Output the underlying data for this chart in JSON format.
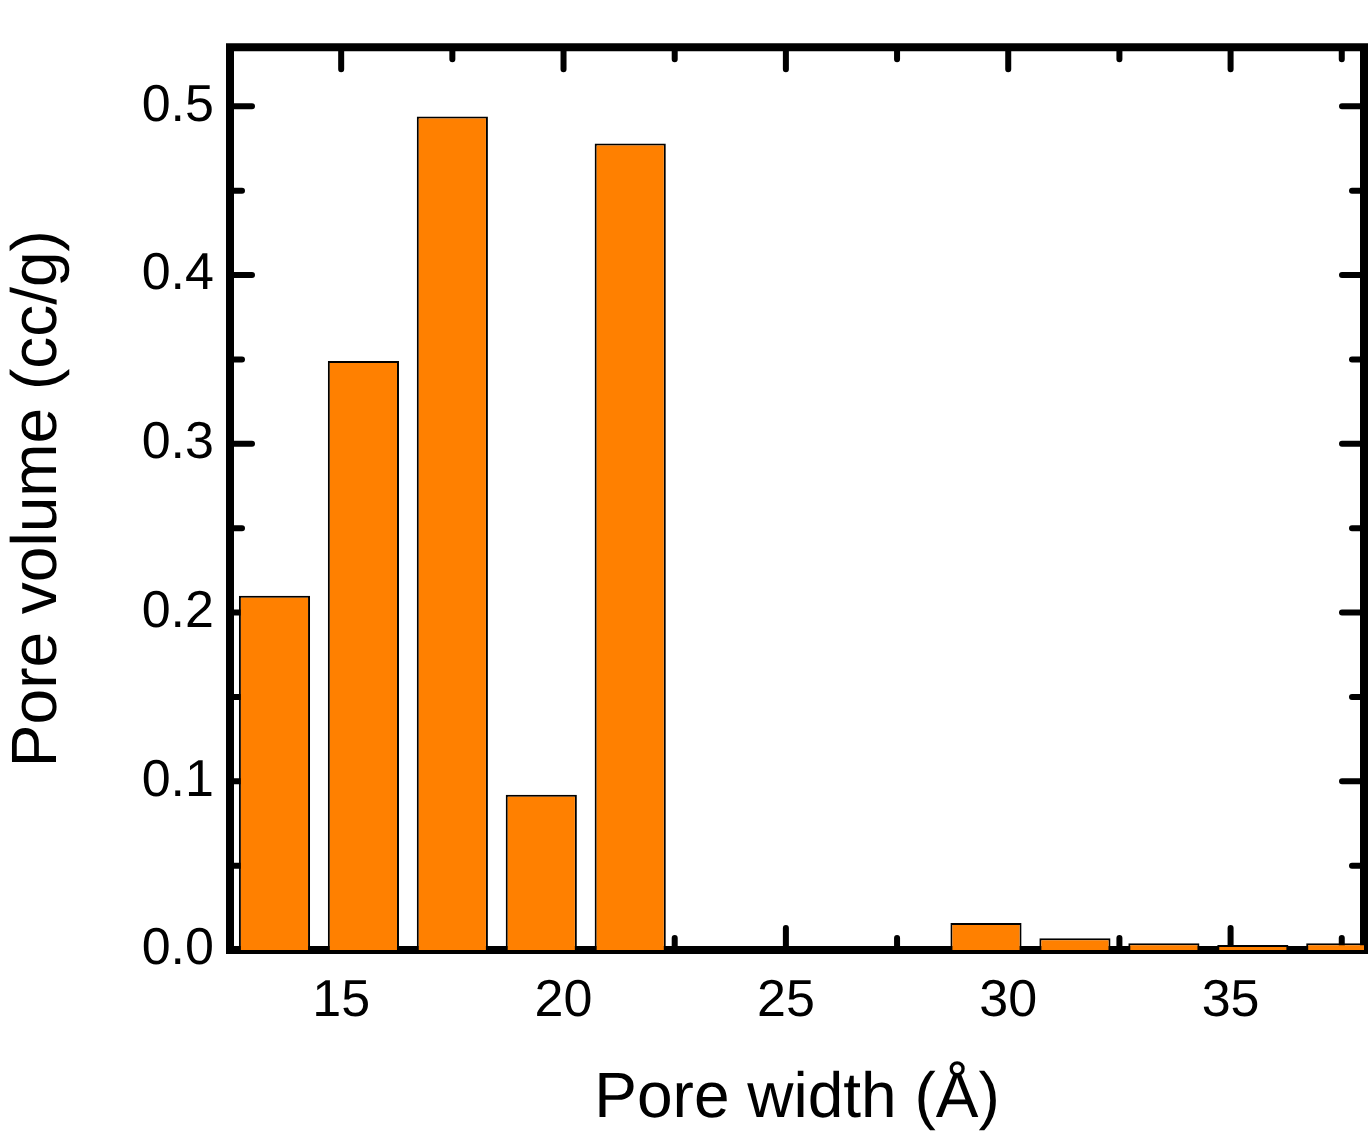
{
  "chart_data": {
    "type": "bar",
    "xlabel": "Pore width (Å)",
    "ylabel": "Pore volume (cc/g)",
    "x": [
      13.5,
      15.5,
      17.5,
      19.5,
      21.5,
      23.5,
      25.5,
      27.5,
      29.5,
      31.5,
      33.5,
      35.5,
      37.5
    ],
    "values": [
      0.21,
      0.349,
      0.494,
      0.092,
      0.478,
      0,
      0,
      0,
      0.016,
      0.007,
      0.004,
      0.003,
      0.004
    ],
    "color": "#ff8000",
    "xlim": [
      12.5,
      38
    ],
    "xticks": [
      15,
      {
        "value": 17.5,
        "label": null
      },
      20,
      {
        "value": 22.5,
        "label": null
      },
      25,
      {
        "value": 27.5,
        "label": null
      },
      30,
      {
        "value": 32.5,
        "label": null
      },
      35,
      {
        "value": 37.5,
        "label": null
      }
    ],
    "ylim": [
      0,
      0.535
    ],
    "yticks": [
      {
        "value": 0,
        "label": "0.0"
      },
      {
        "value": 0.05,
        "label": null
      },
      0.1,
      {
        "value": 0.15,
        "label": null
      },
      0.2,
      {
        "value": 0.25,
        "label": null
      },
      0.3,
      {
        "value": 0.35,
        "label": null
      },
      0.4,
      {
        "value": 0.45,
        "label": null
      },
      0.5
    ],
    "grid": false,
    "legend": false
  }
}
